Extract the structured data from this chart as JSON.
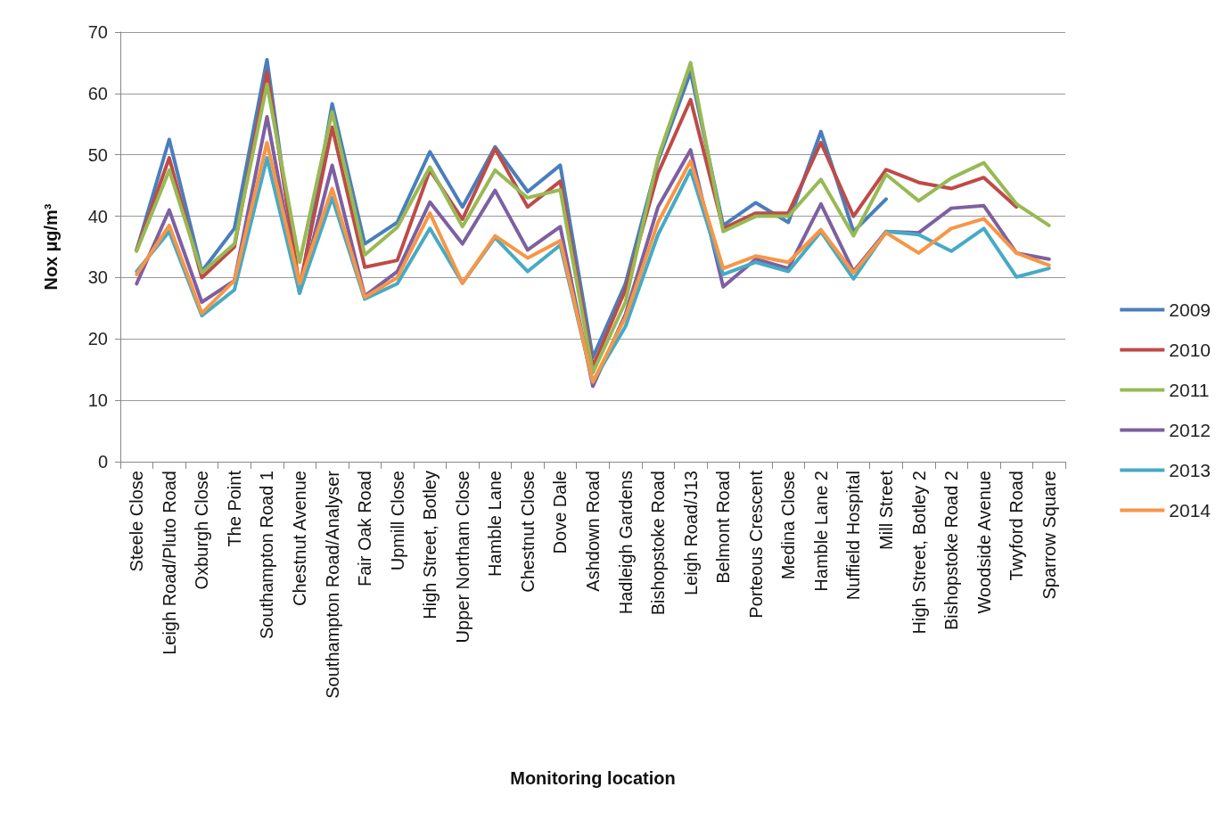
{
  "chart_data": {
    "type": "line",
    "xlabel": "Monitoring location",
    "ylabel": "Nox µg/m³",
    "categories": [
      "Steele Close",
      "Leigh Road/Pluto Road",
      "Oxburgh Close",
      "The Point",
      "Southampton Road 1",
      "Chestnut Avenue",
      "Southampton Road/Analyser",
      "Fair Oak Road",
      "Upmill Close",
      "High Street, Botley",
      "Upper Northam Close",
      "Hamble Lane",
      "Chestnut Close",
      "Dove Dale",
      "Ashdown Road",
      "Hadleigh Gardens",
      "Bishopstoke Road",
      "Leigh Road/J13",
      "Belmont Road",
      "Porteous Crescent",
      "Medina Close",
      "Hamble Lane 2",
      "Nuffield Hospital",
      "Mill Street",
      "High Street, Botley 2",
      "Bishopstoke Road 2",
      "Woodside Avenue",
      "Twyford Road",
      "Sparrow Square"
    ],
    "series": [
      {
        "name": "2009",
        "color": "#4a7ebb",
        "values": [
          34.5,
          52.5,
          31,
          38,
          65.5,
          27.5,
          58.3,
          35.5,
          39,
          50.5,
          41.5,
          51.3,
          44,
          48.3,
          17,
          29,
          49,
          63.5,
          38.5,
          42.2,
          39,
          53.8,
          37.5,
          42.8,
          null,
          null,
          null,
          null,
          null
        ]
      },
      {
        "name": "2010",
        "color": "#be4b48",
        "values": [
          34.5,
          49.5,
          30,
          35,
          63.5,
          28.5,
          54.5,
          31.7,
          32.8,
          47.5,
          39.5,
          51,
          41.5,
          45.7,
          15.5,
          28,
          47,
          59,
          38,
          40.5,
          40.5,
          52,
          40,
          47.6,
          45.5,
          44.5,
          46.3,
          41.5,
          null
        ]
      },
      {
        "name": "2011",
        "color": "#98b954",
        "values": [
          34.3,
          47.5,
          30.8,
          35.5,
          61.5,
          32.5,
          57,
          33.7,
          38.2,
          48,
          38.3,
          47.5,
          43,
          44.3,
          14.5,
          26,
          49.5,
          65,
          37.5,
          40,
          40,
          46,
          36.8,
          46.8,
          42.5,
          46.2,
          48.7,
          42,
          38.5
        ]
      },
      {
        "name": "2012",
        "color": "#7d60a0",
        "values": [
          29,
          41,
          26,
          29.5,
          56.2,
          27.5,
          48.3,
          27,
          31,
          42.3,
          35.5,
          44.2,
          34.5,
          38.3,
          12.3,
          24,
          41.5,
          50.8,
          28.5,
          33,
          31.5,
          42,
          31,
          37.5,
          37.3,
          41.3,
          41.7,
          34,
          33
        ]
      },
      {
        "name": "2013",
        "color": "#46aac5",
        "values": [
          31,
          37.5,
          23.8,
          28,
          49.5,
          27.5,
          43,
          26.5,
          29,
          38,
          29.1,
          36.5,
          31,
          35.3,
          13,
          22,
          37,
          47.5,
          30.5,
          32.5,
          31,
          37.5,
          29.8,
          37.5,
          37,
          34.3,
          38,
          30.1,
          31.5
        ]
      },
      {
        "name": "2014",
        "color": "#f79646",
        "values": [
          30.5,
          38.5,
          24.2,
          29.5,
          52,
          29,
          44.5,
          26.8,
          30,
          40.5,
          29.1,
          36.8,
          33.2,
          36,
          13,
          23.5,
          39,
          49,
          31.5,
          33.5,
          32.5,
          37.8,
          30.8,
          37.3,
          34,
          38,
          39.6,
          34,
          32
        ]
      }
    ],
    "ylim": [
      0,
      70
    ],
    "yticks": [
      0,
      10,
      20,
      30,
      40,
      50,
      60,
      70
    ],
    "grid": "y",
    "legend": "right",
    "marker": "none",
    "line_style": "solid"
  }
}
